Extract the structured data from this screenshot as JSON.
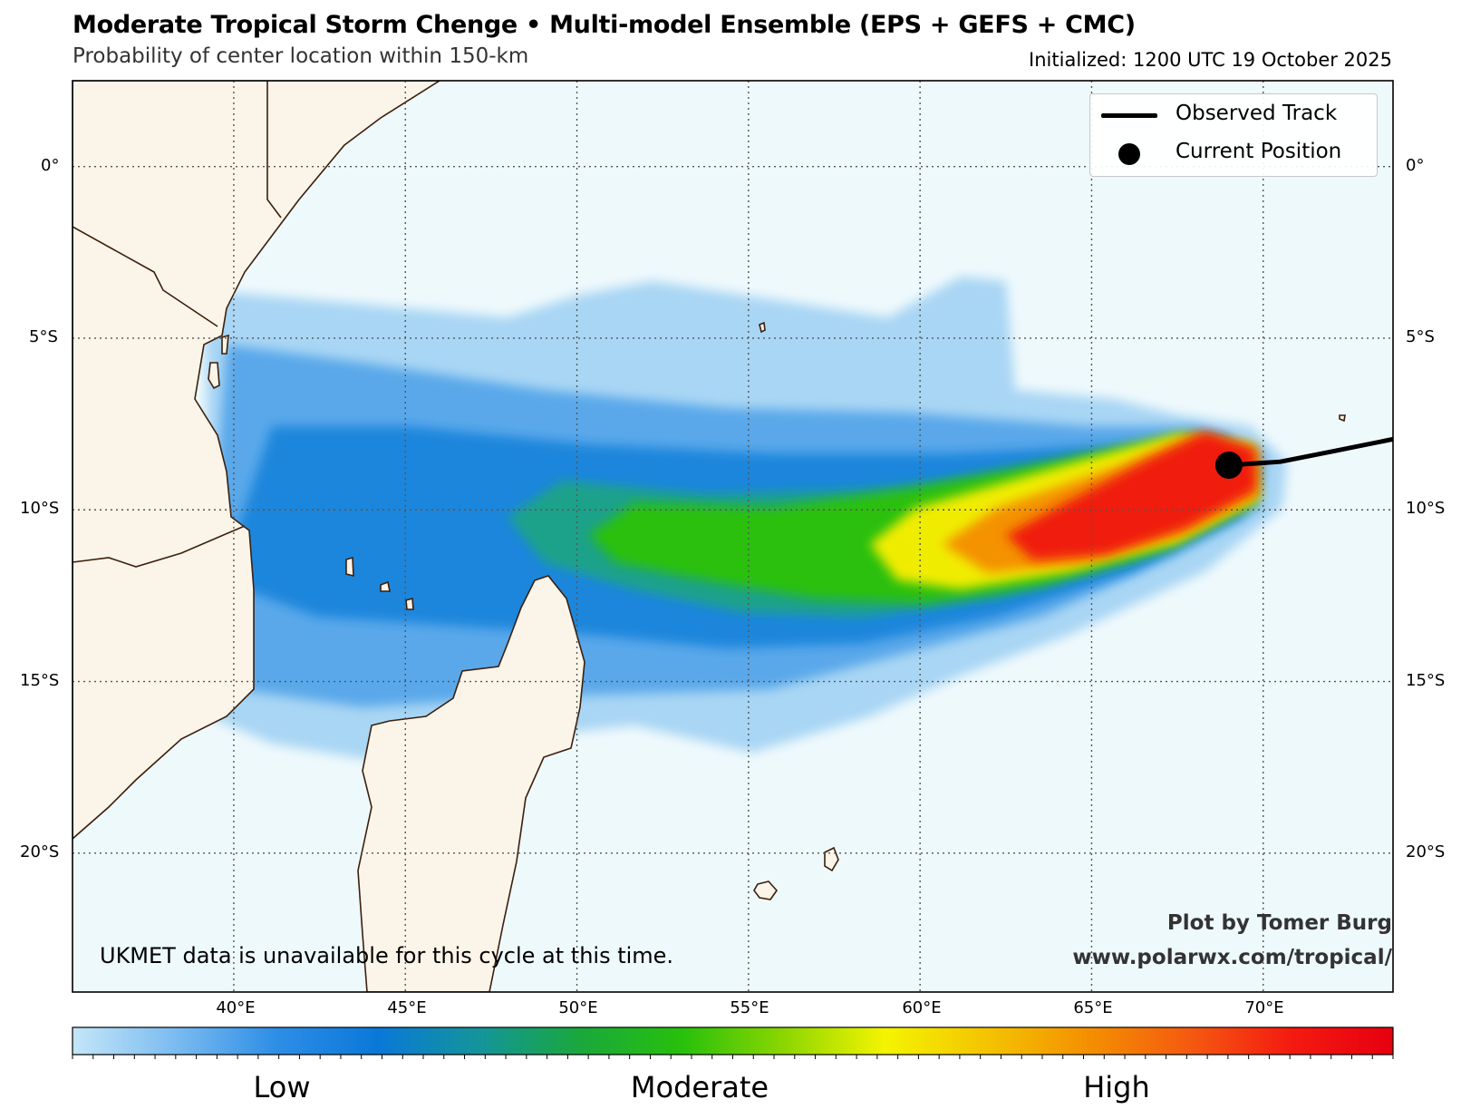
{
  "header": {
    "title": "Moderate Tropical Storm Chenge • Multi-model Ensemble (EPS + GEFS + CMC)",
    "subtitle": "Probability of center location within 150-km",
    "initialized": "Initialized: 1200 UTC 19 October 2025"
  },
  "map": {
    "lat_labels_left": [
      "0°",
      "5°S",
      "10°S",
      "15°S",
      "20°S"
    ],
    "lat_labels_right": [
      "0°",
      "5°S",
      "10°S",
      "15°S",
      "20°S"
    ],
    "lon_labels": [
      "40°E",
      "45°E",
      "50°E",
      "55°E",
      "60°E",
      "65°E",
      "70°E"
    ],
    "colors": {
      "ocean": "#eef9fc",
      "land": "#fbf4e8",
      "coastline": "#3b1f0e",
      "track": "#000000",
      "grid": "#555555"
    },
    "current_position": {
      "lon": 69.0,
      "lat": -8.7
    },
    "observed_track": [
      {
        "lon": 69.0,
        "lat": -8.7
      },
      {
        "lon": 70.5,
        "lat": -8.6
      },
      {
        "lon": 72.0,
        "lat": -8.3
      },
      {
        "lon": 74.0,
        "lat": -7.9
      }
    ]
  },
  "legend": {
    "observed_track": "Observed Track",
    "current_position": "Current Position"
  },
  "note": "UKMET data is unavailable for this cycle at this time.",
  "credit": {
    "author": "Plot by Tomer Burg",
    "url": "www.polarwx.com/tropical/"
  },
  "colorbar": {
    "labels": [
      "Low",
      "Moderate",
      "High"
    ],
    "stops": [
      "#c4e6f8",
      "#7cbcf0",
      "#2e8ee6",
      "#0a78d8",
      "#14949a",
      "#1aa83c",
      "#28c00c",
      "#8cd600",
      "#f4f400",
      "#f4c400",
      "#f49000",
      "#f45a10",
      "#f41a10",
      "#e60010"
    ]
  }
}
